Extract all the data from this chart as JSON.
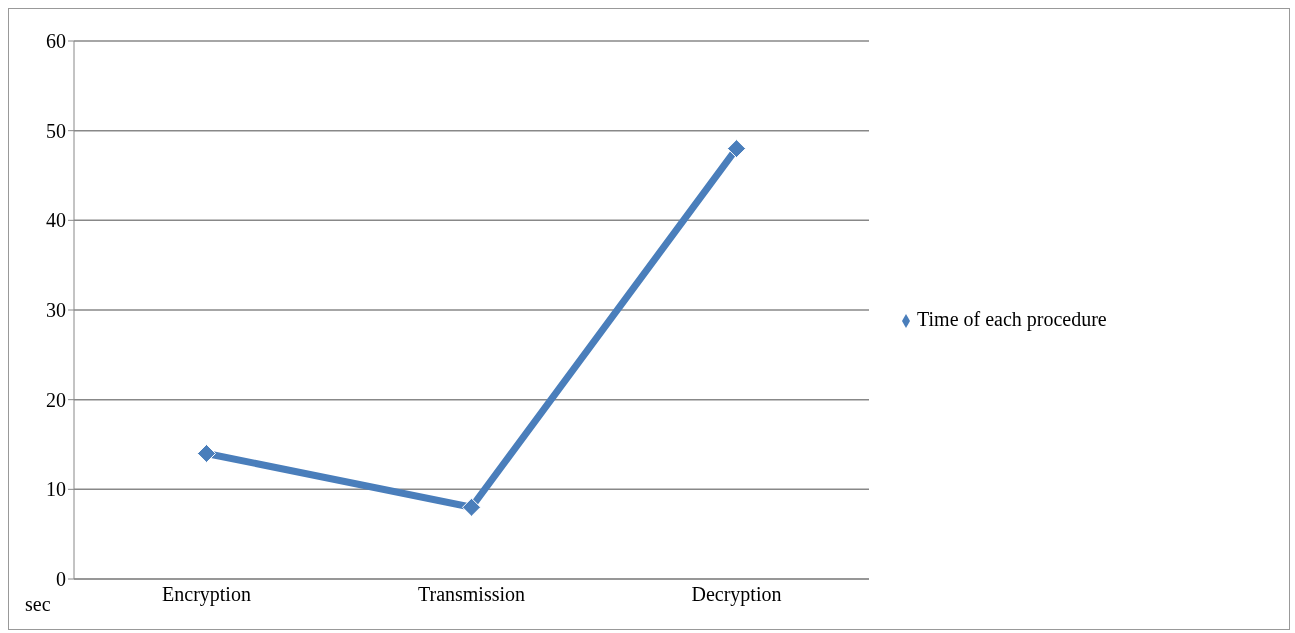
{
  "chart_data": {
    "type": "line",
    "ylabel": "sec",
    "categories": [
      "Encryption",
      "Transmission",
      "Decryption"
    ],
    "series": [
      {
        "name": "Time of each procedure",
        "color": "#4a7ebb",
        "values": [
          14,
          8,
          48
        ]
      }
    ],
    "ylim": [
      0,
      60
    ],
    "yticks": [
      0,
      10,
      20,
      30,
      40,
      50,
      60
    ],
    "grid": "y",
    "legend": "right",
    "marker": "diamond"
  }
}
